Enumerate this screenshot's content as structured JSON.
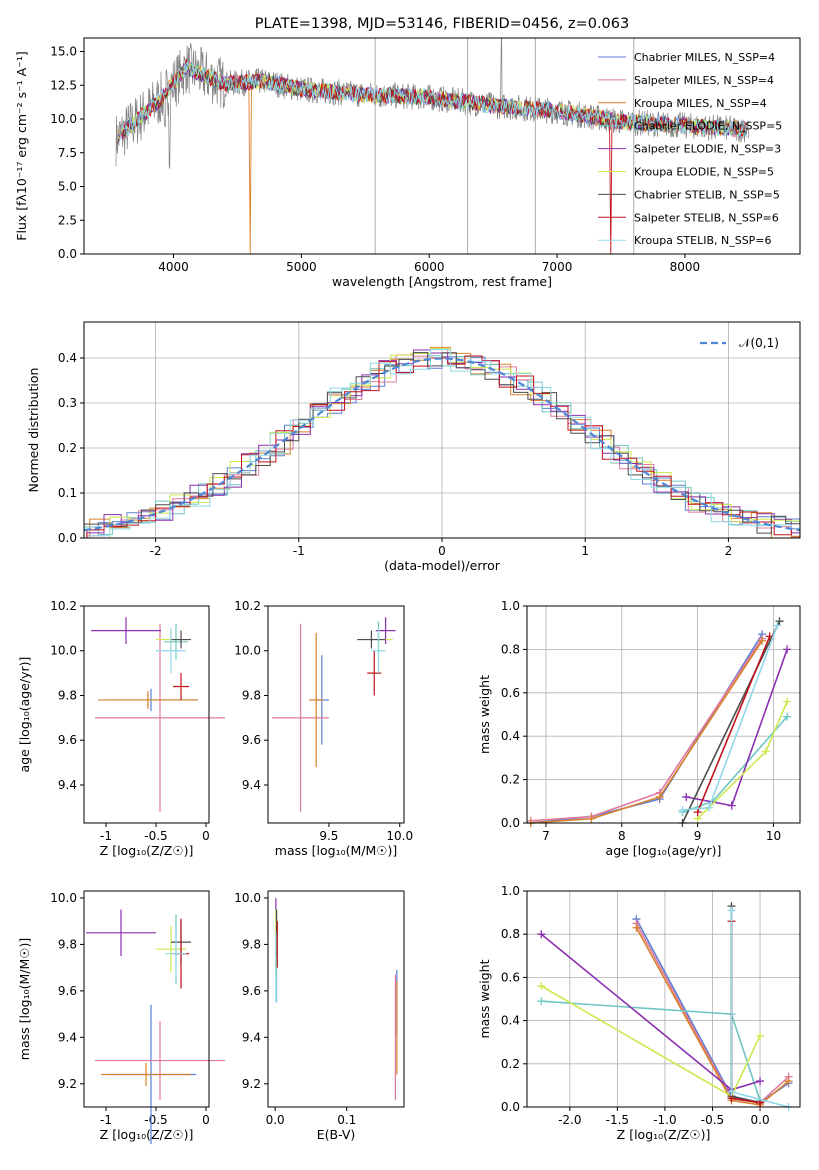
{
  "colors": {
    "chab_miles": "#5b7fd4",
    "salp_miles": "#e07b9e",
    "krou_miles": "#d9822b",
    "chab_elodie": "#6fc7c5",
    "salp_elodie": "#8a2fb0",
    "krou_elodie": "#cde84f",
    "chab_stelib": "#4d4d4d",
    "salp_stelib": "#c0121b",
    "krou_stelib": "#8fd8e8",
    "gauss": "#4f86d6",
    "grid": "#b0b0b0"
  },
  "chart_data": [
    {
      "id": "spectrum",
      "type": "line",
      "title": "PLATE=1398, MJD=53146, FIBERID=0456, z=0.063",
      "xlabel": "wavelength [Angstrom, rest frame]",
      "ylabel": "Flux [fλ10⁻¹⁷ erg cm⁻² s⁻¹ A⁻¹]",
      "xlim": [
        3300,
        8900
      ],
      "ylim": [
        0,
        16
      ],
      "xticks": [
        "4000",
        "5000",
        "6000",
        "7000",
        "8000"
      ],
      "yticks": [
        "0.0",
        "2.5",
        "5.0",
        "7.5",
        "10.0",
        "12.5",
        "15.0"
      ],
      "legend_position": "top-right",
      "series": [
        {
          "name": "Chabrier MILES, N_SSP=4",
          "key": "chab_miles"
        },
        {
          "name": "Salpeter MILES, N_SSP=4",
          "key": "salp_miles"
        },
        {
          "name": "Kroupa MILES, N_SSP=4",
          "key": "krou_miles"
        },
        {
          "name": "Chabrier ELODIE, N_SSP=5",
          "key": "chab_elodie"
        },
        {
          "name": "Salpeter ELODIE, N_SSP=3",
          "key": "salp_elodie"
        },
        {
          "name": "Kroupa ELODIE, N_SSP=5",
          "key": "krou_elodie"
        },
        {
          "name": "Chabrier STELIB, N_SSP=5",
          "key": "chab_stelib"
        },
        {
          "name": "Salpeter STELIB, N_SSP=6",
          "key": "salp_stelib"
        },
        {
          "name": "Kroupa STELIB, N_SSP=6",
          "key": "krou_stelib"
        }
      ],
      "continuum": [
        [
          3550,
          8.5
        ],
        [
          3700,
          9.8
        ],
        [
          3900,
          11.5
        ],
        [
          4100,
          13.8
        ],
        [
          4400,
          12.6
        ],
        [
          4700,
          12.8
        ],
        [
          5000,
          12.2
        ],
        [
          5500,
          11.8
        ],
        [
          6000,
          11.6
        ],
        [
          6500,
          11.0
        ],
        [
          7000,
          10.6
        ],
        [
          7500,
          9.8
        ],
        [
          8000,
          9.5
        ],
        [
          8500,
          9.2
        ]
      ]
    },
    {
      "id": "residuals",
      "type": "line",
      "xlabel": "(data-model)/error",
      "ylabel": "Normed distribution",
      "xlim": [
        -2.5,
        2.5
      ],
      "ylim": [
        0,
        0.48
      ],
      "xticks": [
        "-2",
        "-1",
        "0",
        "1",
        "2"
      ],
      "yticks": [
        "0.0",
        "0.1",
        "0.2",
        "0.3",
        "0.4"
      ],
      "legend": "𝒩(0,1)",
      "legend_position": "top-right",
      "grid": true
    },
    {
      "id": "age_vs_Z",
      "type": "scatter",
      "xlabel": "Z [log₁₀(Z/Z☉)]",
      "ylabel": "age  [log₁₀(age/yr)]",
      "xlim": [
        -1.22,
        0.03
      ],
      "ylim": [
        9.23,
        10.2
      ],
      "xticks": [
        "-1",
        "-0.5",
        "0"
      ],
      "xtickvals": [
        -1,
        -0.5,
        0
      ],
      "yticks": [
        "9.4",
        "9.6",
        "9.8",
        "10.0",
        "10.2"
      ],
      "ytickvals": [
        9.4,
        9.6,
        9.8,
        10.0,
        10.2
      ],
      "points": [
        {
          "key": "chab_miles",
          "x": -0.55,
          "y": 9.78,
          "xerr": 0.45,
          "yerr": 0.05
        },
        {
          "key": "salp_miles",
          "x": -0.46,
          "y": 9.7,
          "xerr": 0.65,
          "yerr": 0.42
        },
        {
          "key": "krou_miles",
          "x": -0.58,
          "y": 9.78,
          "xerr": 0.5,
          "yerr": 0.04
        },
        {
          "key": "chab_elodie",
          "x": -0.3,
          "y": 10.04,
          "xerr": 0.12,
          "yerr": 0.08
        },
        {
          "key": "salp_elodie",
          "x": -0.8,
          "y": 10.09,
          "xerr": 0.35,
          "yerr": 0.06
        },
        {
          "key": "krou_elodie",
          "x": -0.35,
          "y": 10.05,
          "xerr": 0.15,
          "yerr": 0.05
        },
        {
          "key": "chab_stelib",
          "x": -0.25,
          "y": 10.05,
          "xerr": 0.1,
          "yerr": 0.04
        },
        {
          "key": "salp_stelib",
          "x": -0.25,
          "y": 9.84,
          "xerr": 0.08,
          "yerr": 0.06
        },
        {
          "key": "krou_stelib",
          "x": -0.35,
          "y": 10.0,
          "xerr": 0.15,
          "yerr": 0.1
        }
      ]
    },
    {
      "id": "age_vs_mass",
      "type": "scatter",
      "xlabel": "mass [log₁₀(M/M☉)]",
      "ylabel": "",
      "xlim": [
        9.07,
        10.03
      ],
      "ylim": [
        9.23,
        10.2
      ],
      "xticks": [
        "9.5",
        "10.0"
      ],
      "xtickvals": [
        9.5,
        10.0
      ],
      "yticks": [
        "9.4",
        "9.6",
        "9.8",
        "10.0",
        "10.2"
      ],
      "ytickvals": [
        9.4,
        9.6,
        9.8,
        10.0,
        10.2
      ],
      "points": [
        {
          "key": "chab_miles",
          "x": 9.45,
          "y": 9.78,
          "xerr": 0.05,
          "yerr": 0.2
        },
        {
          "key": "salp_miles",
          "x": 9.3,
          "y": 9.7,
          "xerr": 0.2,
          "yerr": 0.42
        },
        {
          "key": "krou_miles",
          "x": 9.41,
          "y": 9.78,
          "xerr": 0.05,
          "yerr": 0.3
        },
        {
          "key": "chab_elodie",
          "x": 9.85,
          "y": 10.05,
          "xerr": 0.1,
          "yerr": 0.08
        },
        {
          "key": "salp_elodie",
          "x": 9.9,
          "y": 10.09,
          "xerr": 0.07,
          "yerr": 0.06
        },
        {
          "key": "krou_elodie",
          "x": 9.85,
          "y": 10.05,
          "xerr": 0.1,
          "yerr": 0.05
        },
        {
          "key": "chab_stelib",
          "x": 9.8,
          "y": 10.05,
          "xerr": 0.1,
          "yerr": 0.04
        },
        {
          "key": "salp_stelib",
          "x": 9.82,
          "y": 9.9,
          "xerr": 0.05,
          "yerr": 0.1
        },
        {
          "key": "krou_stelib",
          "x": 9.85,
          "y": 10.0,
          "xerr": 0.05,
          "yerr": 0.1
        }
      ]
    },
    {
      "id": "weight_vs_age",
      "type": "line",
      "xlabel": "age  [log₁₀(age/yr)]",
      "ylabel": "mass weight",
      "xlim": [
        6.75,
        10.35
      ],
      "ylim": [
        0,
        1
      ],
      "xticks": [
        "7",
        "8",
        "9",
        "10"
      ],
      "xtickvals": [
        7,
        8,
        9,
        10
      ],
      "yticks": [
        "0.0",
        "0.2",
        "0.4",
        "0.6",
        "0.8",
        "1.0"
      ],
      "ytickvals": [
        0,
        0.2,
        0.4,
        0.6,
        0.8,
        1.0
      ],
      "grid": true,
      "series": [
        {
          "key": "chab_miles",
          "points": [
            [
              6.8,
              0.0
            ],
            [
              7.6,
              0.03
            ],
            [
              8.5,
              0.11
            ],
            [
              9.85,
              0.87
            ]
          ]
        },
        {
          "key": "salp_miles",
          "points": [
            [
              6.8,
              0.01
            ],
            [
              7.6,
              0.03
            ],
            [
              8.5,
              0.14
            ],
            [
              9.85,
              0.85
            ]
          ]
        },
        {
          "key": "krou_miles",
          "points": [
            [
              6.8,
              0.0
            ],
            [
              7.6,
              0.02
            ],
            [
              8.5,
              0.12
            ],
            [
              9.85,
              0.84
            ]
          ]
        },
        {
          "key": "chab_elodie",
          "points": [
            [
              8.8,
              0.05
            ],
            [
              9.2,
              0.1
            ],
            [
              10.18,
              0.49
            ]
          ]
        },
        {
          "key": "salp_elodie",
          "points": [
            [
              8.85,
              0.12
            ],
            [
              9.45,
              0.08
            ],
            [
              10.18,
              0.8
            ]
          ]
        },
        {
          "key": "krou_elodie",
          "points": [
            [
              9.0,
              0.02
            ],
            [
              9.9,
              0.33
            ],
            [
              10.18,
              0.56
            ]
          ]
        },
        {
          "key": "chab_stelib",
          "points": [
            [
              8.8,
              0.0
            ],
            [
              10.08,
              0.93
            ]
          ]
        },
        {
          "key": "salp_stelib",
          "points": [
            [
              9.0,
              0.05
            ],
            [
              9.95,
              0.86
            ]
          ]
        },
        {
          "key": "krou_stelib",
          "points": [
            [
              8.8,
              0.06
            ],
            [
              9.15,
              0.07
            ],
            [
              10.05,
              0.91
            ]
          ]
        }
      ]
    },
    {
      "id": "mass_vs_Z",
      "type": "scatter",
      "xlabel": "Z [log₁₀(Z/Z☉)]",
      "ylabel": "mass [log₁₀(M/M☉)]",
      "xlim": [
        -1.22,
        0.03
      ],
      "ylim": [
        9.1,
        10.03
      ],
      "xticks": [
        "-1",
        "-0.5",
        "0"
      ],
      "xtickvals": [
        -1,
        -0.5,
        0
      ],
      "yticks": [
        "9.2",
        "9.4",
        "9.6",
        "9.8",
        "10.0"
      ],
      "ytickvals": [
        9.2,
        9.4,
        9.6,
        9.8,
        10.0
      ],
      "points": [
        {
          "key": "chab_miles",
          "x": -0.55,
          "y": 9.24,
          "xerr": 0.45,
          "yerr": 0.3
        },
        {
          "key": "salp_miles",
          "x": -0.46,
          "y": 9.3,
          "xerr": 0.65,
          "yerr": 0.17
        },
        {
          "key": "krou_miles",
          "x": -0.6,
          "y": 9.24,
          "xerr": 0.45,
          "yerr": 0.05
        },
        {
          "key": "chab_elodie",
          "x": -0.3,
          "y": 9.78,
          "xerr": 0.1,
          "yerr": 0.15
        },
        {
          "key": "salp_elodie",
          "x": -0.85,
          "y": 9.85,
          "xerr": 0.35,
          "yerr": 0.1
        },
        {
          "key": "krou_elodie",
          "x": -0.35,
          "y": 9.78,
          "xerr": 0.15,
          "yerr": 0.1
        },
        {
          "key": "chab_stelib",
          "x": -0.25,
          "y": 9.81,
          "xerr": 0.1,
          "yerr": 0.1
        },
        {
          "key": "salp_stelib",
          "x": -0.25,
          "y": 9.76,
          "xerr": 0.08,
          "yerr": 0.15
        },
        {
          "key": "krou_stelib",
          "x": -0.3,
          "y": 9.76,
          "xerr": 0.1,
          "yerr": 0.1
        }
      ]
    },
    {
      "id": "mass_vs_ebv",
      "type": "scatter",
      "xlabel": "E(B-V)",
      "ylabel": "",
      "xlim": [
        -0.01,
        0.18
      ],
      "ylim": [
        9.1,
        10.03
      ],
      "xticks": [
        "0.0",
        "0.1"
      ],
      "xtickvals": [
        0,
        0.1
      ],
      "yticks": [
        "9.2",
        "9.4",
        "9.6",
        "9.8",
        "10.0"
      ],
      "ytickvals": [
        9.2,
        9.4,
        9.6,
        9.8,
        10.0
      ],
      "points": [
        {
          "key": "chab_miles",
          "x": 0.17,
          "y": 9.55,
          "xerr": 0,
          "yerr": 0.14
        },
        {
          "key": "salp_miles",
          "x": 0.168,
          "y": 9.4,
          "xerr": 0,
          "yerr": 0.27
        },
        {
          "key": "krou_miles",
          "x": 0.17,
          "y": 9.44,
          "xerr": 0,
          "yerr": 0.2
        },
        {
          "key": "chab_elodie",
          "x": 0.002,
          "y": 9.75,
          "xerr": 0,
          "yerr": 0.2
        },
        {
          "key": "salp_elodie",
          "x": 0.001,
          "y": 9.95,
          "xerr": 0,
          "yerr": 0.05
        },
        {
          "key": "krou_elodie",
          "x": 0.001,
          "y": 9.8,
          "xerr": 0,
          "yerr": 0.15
        },
        {
          "key": "chab_stelib",
          "x": 0.002,
          "y": 9.85,
          "xerr": 0,
          "yerr": 0.1
        },
        {
          "key": "salp_stelib",
          "x": 0.003,
          "y": 9.8,
          "xerr": 0,
          "yerr": 0.1
        },
        {
          "key": "krou_stelib",
          "x": 0.001,
          "y": 9.7,
          "xerr": 0,
          "yerr": 0.15
        }
      ]
    },
    {
      "id": "weight_vs_Z",
      "type": "line",
      "xlabel": "Z [log₁₀(Z/Z☉)]",
      "ylabel": "mass weight",
      "xlim": [
        -2.45,
        0.42
      ],
      "ylim": [
        0,
        1
      ],
      "xticks": [
        "-2.0",
        "-1.5",
        "-1.0",
        "-0.5",
        "0.0"
      ],
      "xtickvals": [
        -2,
        -1.5,
        -1,
        -0.5,
        0
      ],
      "yticks": [
        "0.0",
        "0.2",
        "0.4",
        "0.6",
        "0.8",
        "1.0"
      ],
      "ytickvals": [
        0,
        0.2,
        0.4,
        0.6,
        0.8,
        1.0
      ],
      "grid": true,
      "series": [
        {
          "key": "chab_miles",
          "points": [
            [
              -1.3,
              0.87
            ],
            [
              -0.3,
              0.05
            ],
            [
              0.0,
              0.02
            ],
            [
              0.3,
              0.11
            ]
          ]
        },
        {
          "key": "salp_miles",
          "points": [
            [
              -1.3,
              0.85
            ],
            [
              -0.3,
              0.04
            ],
            [
              0.0,
              0.02
            ],
            [
              0.3,
              0.14
            ]
          ]
        },
        {
          "key": "krou_miles",
          "points": [
            [
              -1.3,
              0.83
            ],
            [
              -0.3,
              0.03
            ],
            [
              0.0,
              0.01
            ],
            [
              0.3,
              0.12
            ]
          ]
        },
        {
          "key": "chab_elodie",
          "points": [
            [
              -2.3,
              0.49
            ],
            [
              -0.3,
              0.43
            ],
            [
              0.0,
              0.03
            ]
          ]
        },
        {
          "key": "salp_elodie",
          "points": [
            [
              -2.3,
              0.8
            ],
            [
              -0.3,
              0.08
            ],
            [
              0.0,
              0.12
            ]
          ]
        },
        {
          "key": "krou_elodie",
          "points": [
            [
              -2.3,
              0.56
            ],
            [
              -0.3,
              0.05
            ],
            [
              0.0,
              0.33
            ]
          ]
        },
        {
          "key": "chab_stelib",
          "points": [
            [
              -0.3,
              0.93
            ],
            [
              -0.3,
              0.05
            ],
            [
              0.0,
              0.02
            ]
          ]
        },
        {
          "key": "salp_stelib",
          "points": [
            [
              -0.3,
              0.86
            ],
            [
              -0.3,
              0.04
            ],
            [
              0.0,
              0.02
            ]
          ]
        },
        {
          "key": "krou_stelib",
          "points": [
            [
              -0.3,
              0.91
            ],
            [
              -0.3,
              0.07
            ],
            [
              0.3,
              0.0
            ]
          ]
        }
      ]
    }
  ]
}
